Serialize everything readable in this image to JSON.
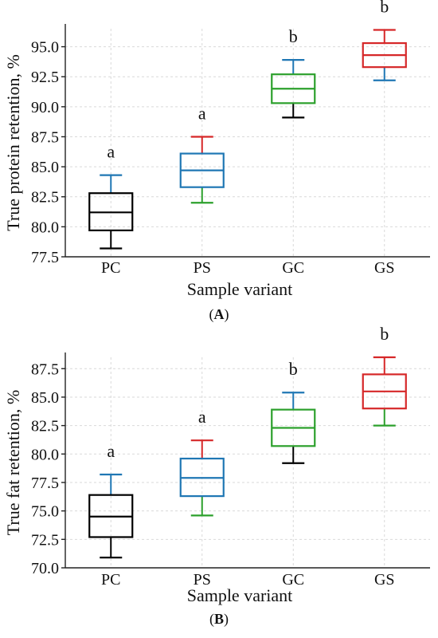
{
  "chart_data": [
    {
      "type": "box",
      "panel_label": "A",
      "xlabel": "Sample variant",
      "ylabel": "True protein retention, %",
      "ylim": [
        77.5,
        96.5
      ],
      "yticks": [
        "77.5",
        "80.0",
        "82.5",
        "85.0",
        "87.5",
        "90.0",
        "92.5",
        "95.0"
      ],
      "grid": true,
      "categories": [
        "PC",
        "PS",
        "GC",
        "GS"
      ],
      "boxes": [
        {
          "category": "PC",
          "whisker_low": 78.2,
          "q1": 79.7,
          "median": 81.2,
          "q3": 82.8,
          "whisker_high": 84.3,
          "significance": "a",
          "color": "#000000",
          "upper_whisker_color": "#1f77b4",
          "lower_whisker_color": "#000000"
        },
        {
          "category": "PS",
          "whisker_low": 82.0,
          "q1": 83.3,
          "median": 84.7,
          "q3": 86.1,
          "whisker_high": 87.5,
          "significance": "a",
          "color": "#1f77b4",
          "upper_whisker_color": "#d62728",
          "lower_whisker_color": "#2ca02c"
        },
        {
          "category": "GC",
          "whisker_low": 89.1,
          "q1": 90.3,
          "median": 91.5,
          "q3": 92.7,
          "whisker_high": 93.9,
          "significance": "b",
          "color": "#2ca02c",
          "upper_whisker_color": "#1f77b4",
          "lower_whisker_color": "#000000"
        },
        {
          "category": "GS",
          "whisker_low": 92.2,
          "q1": 93.3,
          "median": 94.3,
          "q3": 95.3,
          "whisker_high": 96.4,
          "significance": "b",
          "color": "#d62728",
          "upper_whisker_color": "#d62728",
          "lower_whisker_color": "#1f77b4"
        }
      ]
    },
    {
      "type": "box",
      "panel_label": "B",
      "xlabel": "Sample variant",
      "ylabel": "True fat retention, %",
      "ylim": [
        70.0,
        88.5
      ],
      "yticks": [
        "70.0",
        "72.5",
        "75.0",
        "77.5",
        "80.0",
        "82.5",
        "85.0",
        "87.5"
      ],
      "grid": true,
      "categories": [
        "PC",
        "PS",
        "GC",
        "GS"
      ],
      "boxes": [
        {
          "category": "PC",
          "whisker_low": 70.9,
          "q1": 72.7,
          "median": 74.5,
          "q3": 76.4,
          "whisker_high": 78.2,
          "significance": "a",
          "color": "#000000",
          "upper_whisker_color": "#1f77b4",
          "lower_whisker_color": "#000000"
        },
        {
          "category": "PS",
          "whisker_low": 74.6,
          "q1": 76.3,
          "median": 77.9,
          "q3": 79.6,
          "whisker_high": 81.2,
          "significance": "a",
          "color": "#1f77b4",
          "upper_whisker_color": "#d62728",
          "lower_whisker_color": "#2ca02c"
        },
        {
          "category": "GC",
          "whisker_low": 79.2,
          "q1": 80.7,
          "median": 82.3,
          "q3": 83.9,
          "whisker_high": 85.4,
          "significance": "b",
          "color": "#2ca02c",
          "upper_whisker_color": "#1f77b4",
          "lower_whisker_color": "#000000"
        },
        {
          "category": "GS",
          "whisker_low": 82.5,
          "q1": 84.0,
          "median": 85.5,
          "q3": 87.0,
          "whisker_high": 88.5,
          "significance": "b",
          "color": "#d62728",
          "upper_whisker_color": "#d62728",
          "lower_whisker_color": "#2ca02c"
        }
      ]
    }
  ]
}
